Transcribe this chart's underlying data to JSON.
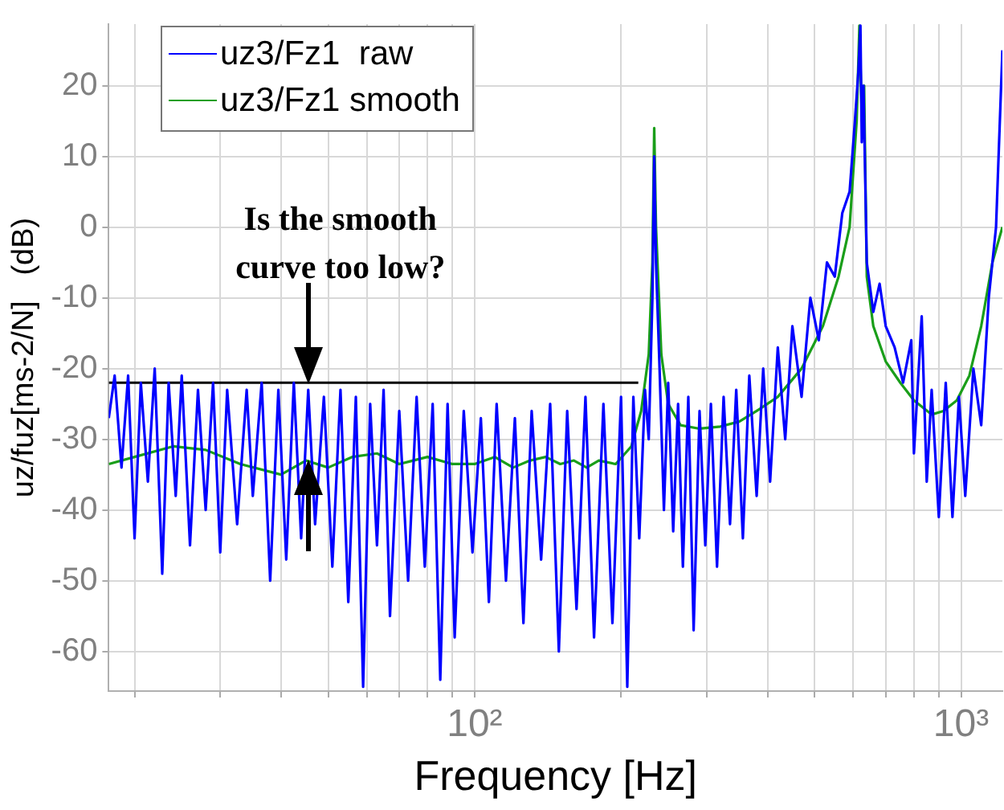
{
  "chart_data": {
    "type": "line",
    "xlabel": "Frequency [Hz]",
    "ylabel": "uz/fuz[ms-2/N]   (dB)",
    "log": "x",
    "grid": true,
    "legend": "top left",
    "marker": "none",
    "line_style": "solid",
    "xlim": [
      17.7,
      1216
    ],
    "ylim": [
      -65.6,
      28.7
    ],
    "xticks": [
      {
        "value": 20,
        "label": null
      },
      {
        "value": 30,
        "label": null
      },
      {
        "value": 40,
        "label": null
      },
      {
        "value": 50,
        "label": null
      },
      {
        "value": 60,
        "label": null
      },
      {
        "value": 70,
        "label": null
      },
      {
        "value": 80,
        "label": null
      },
      {
        "value": 90,
        "label": null
      },
      {
        "value": 100,
        "label": "10²"
      },
      {
        "value": 200,
        "label": null
      },
      {
        "value": 300,
        "label": null
      },
      {
        "value": 400,
        "label": null
      },
      {
        "value": 500,
        "label": null
      },
      {
        "value": 600,
        "label": null
      },
      {
        "value": 700,
        "label": null
      },
      {
        "value": 800,
        "label": null
      },
      {
        "value": 900,
        "label": null
      },
      {
        "value": 1000,
        "label": "10³"
      }
    ],
    "yticks": [
      -60,
      -50,
      -40,
      -30,
      -20,
      -10,
      0,
      10,
      20
    ],
    "annotations": [
      {
        "text": "Is the smooth curve too low?",
        "x": 45.5,
        "y": -22
      }
    ],
    "series": [
      {
        "name": "uz3/Fz1  raw",
        "color": "#0000ff",
        "x": [
          17.7,
          18.2,
          18.8,
          19.4,
          20,
          20.6,
          21.3,
          22,
          22.8,
          23.5,
          24.3,
          25,
          26,
          27,
          28,
          29,
          30,
          31,
          32.5,
          34,
          35,
          36.5,
          38,
          39.5,
          41,
          42.5,
          44,
          45.5,
          47,
          49,
          51,
          53,
          55,
          57,
          59,
          61,
          63,
          65,
          67,
          70,
          73,
          76,
          79,
          82,
          85,
          88,
          91,
          95,
          99,
          103,
          107,
          111,
          116,
          121,
          126,
          131,
          137,
          143,
          149,
          155,
          162,
          169,
          176,
          184,
          192,
          200,
          206,
          212,
          218,
          224,
          228,
          232,
          234,
          236,
          240,
          245,
          250,
          256,
          262,
          268,
          275,
          282,
          290,
          298,
          306,
          315,
          325,
          335,
          345,
          356,
          367,
          380,
          392,
          405,
          420,
          435,
          450,
          470,
          490,
          510,
          530,
          550,
          570,
          590,
          605,
          615,
          621,
          625,
          630,
          640,
          660,
          680,
          700,
          730,
          760,
          790,
          800,
          830,
          850,
          870,
          900,
          930,
          960,
          990,
          1020,
          1060,
          1100,
          1140,
          1180,
          1216
        ],
        "values": [
          -27,
          -21,
          -34,
          -21,
          -44,
          -22,
          -36,
          -20,
          -49,
          -22,
          -38,
          -21,
          -45,
          -23,
          -40,
          -22,
          -46,
          -23,
          -42,
          -23,
          -38,
          -22,
          -50,
          -23,
          -47,
          -22,
          -44,
          -23,
          -42,
          -24,
          -48,
          -23,
          -53,
          -24,
          -65,
          -25,
          -45,
          -23,
          -55,
          -26,
          -50,
          -24,
          -48,
          -25,
          -64,
          -25,
          -58,
          -26,
          -46,
          -27,
          -53,
          -25,
          -50,
          -27,
          -56,
          -26,
          -47,
          -25,
          -60,
          -26,
          -54,
          -24,
          -58,
          -25,
          -56,
          -24,
          -65,
          -24,
          -44,
          -23,
          -30,
          -10,
          10,
          -5,
          -20,
          -40,
          -22,
          -43,
          -25,
          -48,
          -24,
          -57,
          -26,
          -45,
          -25,
          -48,
          -24,
          -42,
          -23,
          -44,
          -21,
          -38,
          -20,
          -36,
          -17,
          -30,
          -14,
          -24,
          -10,
          -16,
          -5,
          -7,
          2,
          5,
          15,
          22,
          28.5,
          12,
          20,
          -5,
          -12,
          -8,
          -14,
          -17,
          -22,
          -16,
          -32,
          -12.6,
          -36,
          -23,
          -41,
          -22,
          -41,
          -24,
          -38,
          -20,
          -28,
          -10,
          0,
          25
        ]
      },
      {
        "name": "uz3/Fz1 smooth",
        "color": "#1a9e1a",
        "x": [
          17.7,
          20,
          24,
          28,
          33,
          40,
          45,
          50,
          56,
          63,
          70,
          80,
          90,
          100,
          110,
          120,
          130,
          140,
          150,
          160,
          170,
          180,
          195,
          210,
          220,
          228,
          232,
          234,
          236,
          242,
          250,
          265,
          290,
          320,
          350,
          380,
          420,
          470,
          520,
          560,
          590,
          610,
          618,
          625,
          632,
          640,
          660,
          700,
          750,
          800,
          870,
          920,
          980,
          1040,
          1100,
          1160,
          1216
        ],
        "values": [
          -33.5,
          -32.5,
          -31,
          -31.5,
          -33.5,
          -35,
          -33,
          -34,
          -32.5,
          -32,
          -33.5,
          -32.5,
          -33.5,
          -33.5,
          -32.5,
          -34,
          -33,
          -32.5,
          -33.5,
          -33,
          -34,
          -33,
          -33.5,
          -31,
          -26,
          -18,
          -5,
          14,
          0,
          -18,
          -25,
          -28,
          -28.5,
          -28.2,
          -27.5,
          -26,
          -24,
          -20,
          -14,
          -7,
          0,
          15,
          28.5,
          16,
          20,
          -7,
          -14,
          -19,
          -22,
          -24.5,
          -26.5,
          -26,
          -24.5,
          -21,
          -14,
          -5,
          0
        ]
      },
      {
        "color": "#000000",
        "x": [
          17.7,
          217
        ],
        "values": [
          -22,
          -22
        ]
      }
    ]
  }
}
